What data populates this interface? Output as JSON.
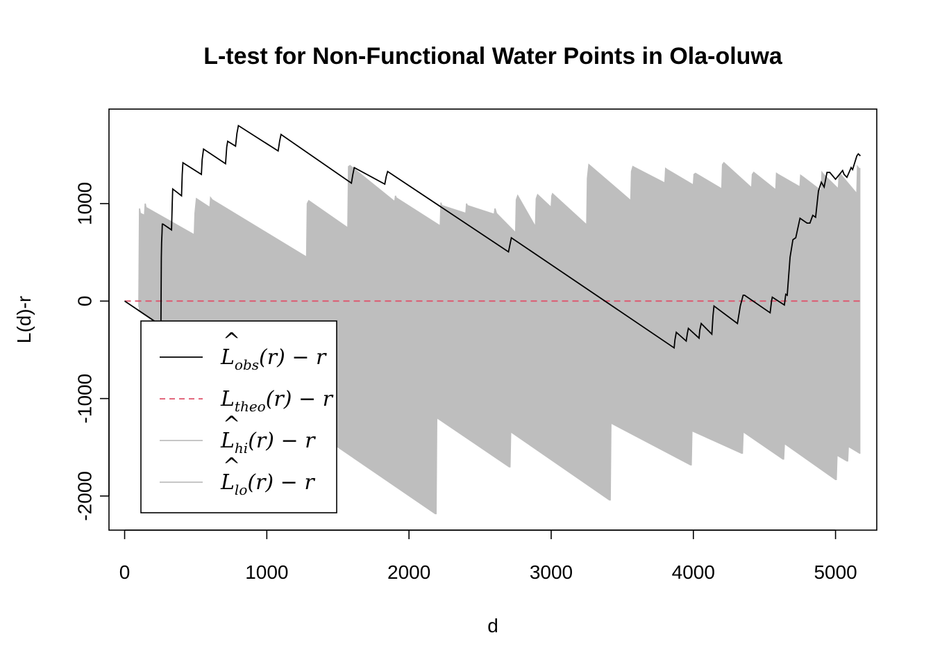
{
  "chart_data": {
    "type": "line",
    "title": "L-test for Non-Functional Water Points in Ola-oluwa",
    "xlabel": "d",
    "ylabel": "L(d)-r",
    "xlim": [
      -110,
      5290
    ],
    "ylim": [
      -2350,
      1970
    ],
    "xticks": [
      0,
      1000,
      2000,
      3000,
      4000,
      5000
    ],
    "xtick_labels": [
      "0",
      "1000",
      "2000",
      "3000",
      "4000",
      "5000"
    ],
    "yticks": [
      -2000,
      -1000,
      0,
      1000
    ],
    "ytick_labels": [
      "-2000",
      "-1000",
      "0",
      "1000"
    ],
    "grid": false,
    "legend_position": "bottom-left",
    "legend": [
      {
        "series": "obs",
        "label": "L̂obs(r) − r",
        "style": "solid",
        "color": "#000000"
      },
      {
        "series": "theo",
        "label": "Ltheo(r) − r",
        "style": "dashed",
        "color": "#DF536B"
      },
      {
        "series": "hi",
        "label": "L̂hi(r) − r",
        "style": "solid",
        "color": "#BEBEBE"
      },
      {
        "series": "lo",
        "label": "L̂lo(r) − r",
        "style": "solid",
        "color": "#BEBEBE"
      }
    ],
    "series": [
      {
        "name": "obs",
        "color": "#000000",
        "x": [
          0,
          255,
          258,
          260,
          263,
          265,
          270,
          330,
          335,
          338,
          400,
          405,
          410,
          540,
          545,
          555,
          710,
          718,
          725,
          780,
          790,
          800,
          1080,
          1090,
          1100,
          1595,
          1605,
          1615,
          1830,
          1840,
          1850,
          2700,
          2710,
          2720,
          3865,
          3870,
          3880,
          3950,
          3958,
          3965,
          4040,
          4045,
          4055,
          4130,
          4138,
          4145,
          4310,
          4330,
          4350,
          4355,
          4360,
          4540,
          4550,
          4555,
          4640,
          4650,
          4660,
          4680,
          4700,
          4720,
          4750,
          4800,
          4820,
          4840,
          4860,
          4880,
          4900,
          4920,
          4940,
          4960,
          5000,
          5050,
          5060,
          5080,
          5110,
          5120,
          5150,
          5160,
          5175
        ],
        "y": [
          0,
          -250,
          450,
          600,
          700,
          790,
          790,
          730,
          1000,
          1150,
          1080,
          1300,
          1420,
          1300,
          1450,
          1560,
          1410,
          1580,
          1640,
          1590,
          1720,
          1800,
          1540,
          1640,
          1710,
          1210,
          1300,
          1370,
          1200,
          1280,
          1330,
          505,
          580,
          650,
          -480,
          -400,
          -320,
          -410,
          -330,
          -280,
          -380,
          -300,
          -230,
          -340,
          -150,
          -50,
          -230,
          -50,
          60,
          60,
          60,
          -120,
          0,
          40,
          -40,
          70,
          60,
          450,
          630,
          650,
          850,
          800,
          800,
          880,
          860,
          1130,
          1220,
          1170,
          1320,
          1320,
          1250,
          1340,
          1300,
          1270,
          1370,
          1350,
          1490,
          1510,
          1490
        ]
      },
      {
        "name": "theo",
        "color": "#DF536B",
        "x": [
          0,
          5175
        ],
        "y": [
          0,
          0
        ]
      },
      {
        "name": "hi",
        "color": "#BEBEBE",
        "x": [
          100,
          105,
          110,
          140,
          145,
          150,
          490,
          495,
          505,
          600,
          605,
          615,
          1280,
          1285,
          1295,
          1570,
          1575,
          1585,
          1900,
          1905,
          1910,
          2220,
          2225,
          2230,
          2400,
          2405,
          2410,
          2600,
          2605,
          2615,
          2750,
          2755,
          2765,
          2890,
          2895,
          2905,
          3000,
          3005,
          3010,
          3250,
          3255,
          3265,
          3560,
          3565,
          3575,
          3800,
          3805,
          3815,
          4000,
          4005,
          4015,
          4200,
          4205,
          4215,
          4410,
          4415,
          4425,
          4580,
          4585,
          4595,
          4750,
          4755,
          4765,
          4900,
          4905,
          4915,
          5020,
          5025,
          5035,
          5150,
          5155,
          5165,
          5175
        ],
        "y": [
          -60,
          950,
          900,
          880,
          1000,
          960,
          680,
          900,
          1050,
          960,
          1060,
          1040,
          450,
          1000,
          1030,
          750,
          1380,
          1390,
          1020,
          1080,
          1060,
          770,
          1010,
          980,
          900,
          1000,
          980,
          890,
          950,
          900,
          700,
          1040,
          1080,
          760,
          1050,
          1090,
          960,
          1080,
          1100,
          780,
          1260,
          1400,
          1030,
          1330,
          1380,
          1210,
          1360,
          1350,
          1190,
          1300,
          1310,
          1150,
          1400,
          1420,
          1160,
          1300,
          1320,
          1140,
          1310,
          1300,
          1170,
          1290,
          1280,
          1130,
          1320,
          1300,
          1150,
          1280,
          1300,
          1100,
          1380,
          1360,
          1360
        ]
      },
      {
        "name": "lo",
        "color": "#BEBEBE",
        "x": [
          100,
          2185,
          2190,
          2195,
          2200,
          2705,
          2710,
          2715,
          3410,
          3415,
          3420,
          3980,
          3985,
          3990,
          4340,
          4345,
          4350,
          4630,
          4635,
          4640,
          5000,
          5005,
          5010,
          5080,
          5085,
          5090,
          5170,
          5175
        ],
        "y": [
          -100,
          -2180,
          -2180,
          -1200,
          -1200,
          -1700,
          -1700,
          -1340,
          -2040,
          -2040,
          -1250,
          -1680,
          -1680,
          -1330,
          -1560,
          -1560,
          -1340,
          -1620,
          -1620,
          -1460,
          -1830,
          -1830,
          -1580,
          -1640,
          -1640,
          -1490,
          -1560,
          -1560
        ]
      }
    ]
  }
}
